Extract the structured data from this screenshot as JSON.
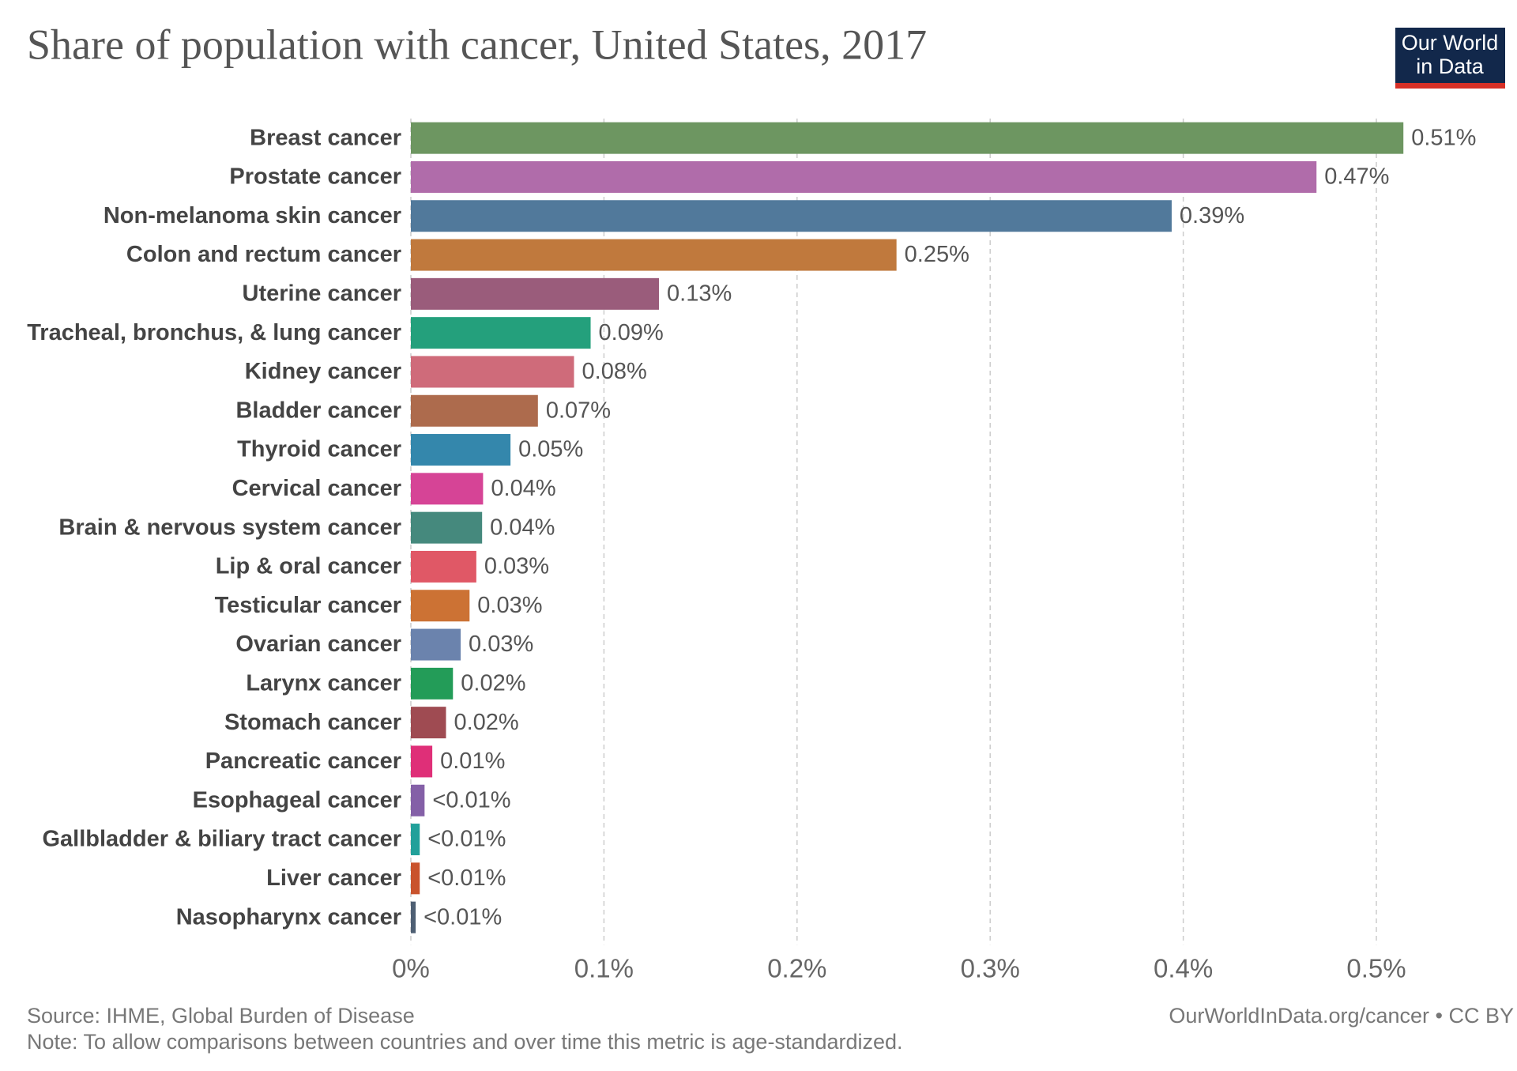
{
  "chart_data": {
    "type": "bar",
    "orientation": "horizontal",
    "title": "Share of population with cancer, United States, 2017",
    "logo": [
      "Our World",
      "in Data"
    ],
    "categories": [
      "Breast cancer",
      "Prostate cancer",
      "Non-melanoma skin cancer",
      "Colon and rectum cancer",
      "Uterine cancer",
      "Tracheal, bronchus, & lung cancer",
      "Kidney cancer",
      "Bladder cancer",
      "Thyroid cancer",
      "Cervical cancer",
      "Brain & nervous system cancer",
      "Lip & oral cancer",
      "Testicular cancer",
      "Ovarian cancer",
      "Larynx cancer",
      "Stomach cancer",
      "Pancreatic cancer",
      "Esophageal cancer",
      "Gallbladder & biliary tract cancer",
      "Liver cancer",
      "Nasopharynx cancer"
    ],
    "values": [
      0.514,
      0.469,
      0.394,
      0.2515,
      0.1285,
      0.0931,
      0.0845,
      0.0658,
      0.0516,
      0.0374,
      0.0369,
      0.0339,
      0.0304,
      0.0258,
      0.0218,
      0.0182,
      0.0111,
      0.0071,
      0.0046,
      0.0046,
      0.0025
    ],
    "value_labels": [
      "0.51%",
      "0.47%",
      "0.39%",
      "0.25%",
      "0.13%",
      "0.09%",
      "0.08%",
      "0.07%",
      "0.05%",
      "0.04%",
      "0.04%",
      "0.03%",
      "0.03%",
      "0.03%",
      "0.02%",
      "0.02%",
      "0.01%",
      "<0.01%",
      "<0.01%",
      "<0.01%",
      "<0.01%"
    ],
    "colors": [
      "#6d9661",
      "#b06caa",
      "#51799b",
      "#c0793d",
      "#9a5c7b",
      "#24a07c",
      "#cf6b7a",
      "#ad6b4d",
      "#3487ac",
      "#d64496",
      "#45897d",
      "#e05866",
      "#cc7234",
      "#6b83ad",
      "#239c58",
      "#9f4b52",
      "#df2f78",
      "#8460a7",
      "#22a09a",
      "#c9532d",
      "#4e5f73"
    ],
    "xlim": [
      0,
      0.55
    ],
    "xticks": [
      {
        "value": 0,
        "label": "0%"
      },
      {
        "value": 0.1,
        "label": "0.1%"
      },
      {
        "value": 0.2,
        "label": "0.2%"
      },
      {
        "value": 0.3,
        "label": "0.3%"
      },
      {
        "value": 0.4,
        "label": "0.4%"
      },
      {
        "value": 0.5,
        "label": "0.5%"
      }
    ],
    "grid": true,
    "source": "Source: IHME, Global Burden of Disease",
    "note": "Note: To allow comparisons between countries and over time this metric is age-standardized.",
    "credit": "OurWorldInData.org/cancer • CC BY"
  }
}
